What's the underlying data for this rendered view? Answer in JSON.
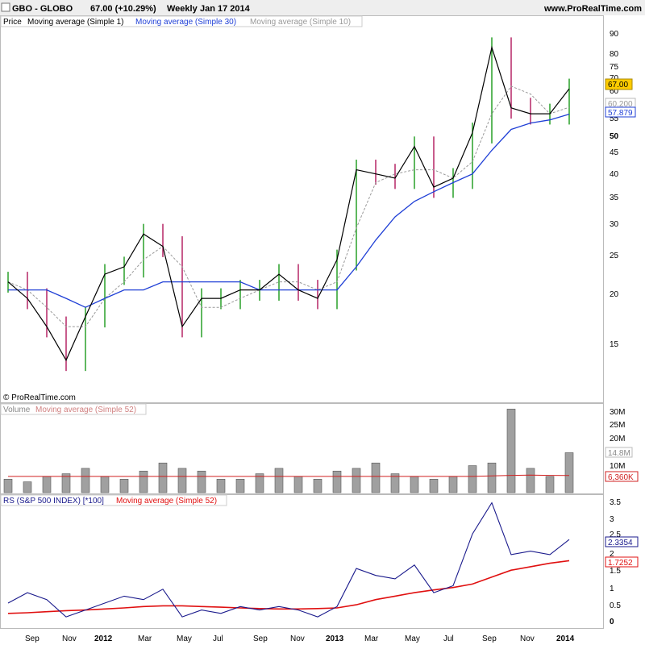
{
  "header": {
    "symbol": "GBO - GLOBO",
    "quote": "67.00 (+10.29%)",
    "period": "Weekly",
    "date": "Jan 17 2014",
    "site": "www.ProRealTime.com"
  },
  "copyright": "© ProRealTime.com",
  "colors": {
    "up": "#1a9a1a",
    "down": "#b0165a",
    "ma1": "#000000",
    "ma30": "#1f3fd6",
    "ma10": "#999999",
    "volume_bar": "#a0a0a0",
    "vol_ma": "#d02020",
    "rs_line": "#1a1a8c",
    "rs_ma": "#e01010",
    "price_badge": "#ffcc00"
  },
  "price_panel": {
    "legend": [
      "Price",
      "Moving average (Simple 1)",
      "Moving average (Simple 30)",
      "Moving average (Simple 10)"
    ],
    "y_ticks": [
      "90",
      "80",
      "75",
      "70",
      "60",
      "55",
      "50",
      "45",
      "40",
      "35",
      "30",
      "25",
      "20",
      "15"
    ],
    "badges": {
      "last": "67.00",
      "ma10": "60.200",
      "ma30": "57.879"
    }
  },
  "volume_panel": {
    "legend": [
      "Volume",
      "Moving average (Simple 52)"
    ],
    "y_ticks": [
      "30M",
      "25M",
      "20M",
      "10M"
    ],
    "badges": {
      "last": "14.8M",
      "ma": "6,360K"
    }
  },
  "rs_panel": {
    "legend": [
      "RS (S&P 500 INDEX) [*100]",
      "Moving average (Simple 52)"
    ],
    "y_ticks": [
      "3.5",
      "3",
      "2.5",
      "2",
      "1.5",
      "1",
      "0.5",
      "0"
    ],
    "badges": {
      "last": "2.3354",
      "ma": "1.7252"
    }
  },
  "x_axis": {
    "labels": [
      "Sep",
      "Nov",
      "2012",
      "Mar",
      "May",
      "Jul",
      "Sep",
      "Nov",
      "2013",
      "Mar",
      "May",
      "Jul",
      "Sep",
      "Nov",
      "2014"
    ],
    "bold": [
      "2012",
      "2013",
      "2014"
    ]
  },
  "chart_data": [
    {
      "type": "line",
      "title": "GBO - GLOBO",
      "scale": "log",
      "ylim": [
        12,
        95
      ],
      "x": [
        "2011-08",
        "2011-09",
        "2011-10",
        "2011-11",
        "2011-12",
        "2012-01",
        "2012-02",
        "2012-03",
        "2012-04",
        "2012-05",
        "2012-06",
        "2012-07",
        "2012-08",
        "2012-09",
        "2012-10",
        "2012-11",
        "2012-12",
        "2013-01",
        "2013-02",
        "2013-03",
        "2013-04",
        "2013-05",
        "2013-06",
        "2013-07",
        "2013-08",
        "2013-09",
        "2013-10",
        "2013-11",
        "2013-12",
        "2014-01"
      ],
      "series": [
        {
          "name": "Price",
          "values": [
            22,
            20,
            17,
            14,
            18,
            23,
            24,
            29,
            27,
            17,
            20,
            20,
            21,
            21,
            23,
            21,
            20,
            25,
            42,
            41,
            40,
            48,
            38,
            40,
            52,
            85,
            60,
            58,
            58,
            67
          ]
        },
        {
          "name": "Moving average (Simple 30)",
          "values": [
            21,
            21,
            21,
            20,
            19,
            20,
            21,
            21,
            22,
            22,
            22,
            22,
            22,
            21,
            21,
            21,
            21,
            21,
            24,
            28,
            32,
            35,
            37,
            39,
            41,
            47,
            53,
            55,
            56,
            57.879
          ]
        },
        {
          "name": "Moving average (Simple 10)",
          "values": [
            22,
            21,
            19,
            17,
            17,
            20,
            22,
            25,
            27,
            24,
            19,
            19,
            20,
            21,
            22,
            22,
            21,
            22,
            30,
            39,
            41,
            42,
            42,
            40,
            44,
            58,
            68,
            65,
            58,
            60.2
          ]
        }
      ]
    },
    {
      "type": "bar",
      "title": "Volume",
      "ylim": [
        0,
        32
      ],
      "categories": [
        "2011-08",
        "2011-09",
        "2011-10",
        "2011-11",
        "2011-12",
        "2012-01",
        "2012-02",
        "2012-03",
        "2012-04",
        "2012-05",
        "2012-06",
        "2012-07",
        "2012-08",
        "2012-09",
        "2012-10",
        "2012-11",
        "2012-12",
        "2013-01",
        "2013-02",
        "2013-03",
        "2013-04",
        "2013-05",
        "2013-06",
        "2013-07",
        "2013-08",
        "2013-09",
        "2013-10",
        "2013-11",
        "2013-12",
        "2014-01"
      ],
      "values": [
        5,
        4,
        6,
        7,
        9,
        6,
        5,
        8,
        11,
        9,
        8,
        5,
        5,
        7,
        9,
        6,
        5,
        8,
        9,
        11,
        7,
        6,
        5,
        6,
        10,
        11,
        31,
        9,
        6,
        14.8
      ],
      "series": [
        {
          "name": "Moving average (Simple 52)",
          "values": [
            6,
            6,
            6,
            6,
            6,
            6,
            6,
            6,
            6,
            6,
            6,
            6,
            6,
            6,
            6,
            6,
            6,
            6,
            6,
            6,
            6,
            6,
            6,
            6,
            6,
            6.2,
            6.4,
            6.5,
            6.4,
            6.36
          ]
        }
      ]
    },
    {
      "type": "line",
      "title": "RS (S&P 500 INDEX) [*100]",
      "ylim": [
        -0.2,
        3.6
      ],
      "x": [
        "2011-08",
        "2011-09",
        "2011-10",
        "2011-11",
        "2011-12",
        "2012-01",
        "2012-02",
        "2012-03",
        "2012-04",
        "2012-05",
        "2012-06",
        "2012-07",
        "2012-08",
        "2012-09",
        "2012-10",
        "2012-11",
        "2012-12",
        "2013-01",
        "2013-02",
        "2013-03",
        "2013-04",
        "2013-05",
        "2013-06",
        "2013-07",
        "2013-08",
        "2013-09",
        "2013-10",
        "2013-11",
        "2013-12",
        "2014-01"
      ],
      "series": [
        {
          "name": "RS (S&P 500 INDEX) [*100]",
          "values": [
            0.5,
            0.8,
            0.6,
            0.1,
            0.3,
            0.5,
            0.7,
            0.6,
            0.9,
            0.1,
            0.3,
            0.2,
            0.4,
            0.3,
            0.4,
            0.3,
            0.1,
            0.4,
            1.5,
            1.3,
            1.2,
            1.6,
            0.8,
            1.0,
            2.5,
            3.4,
            1.9,
            2.0,
            1.9,
            2.3354
          ]
        },
        {
          "name": "Moving average (Simple 52)",
          "values": [
            0.2,
            0.22,
            0.25,
            0.28,
            0.3,
            0.33,
            0.36,
            0.4,
            0.42,
            0.42,
            0.4,
            0.38,
            0.36,
            0.34,
            0.33,
            0.33,
            0.34,
            0.36,
            0.45,
            0.6,
            0.7,
            0.8,
            0.88,
            0.95,
            1.05,
            1.25,
            1.45,
            1.55,
            1.65,
            1.7252
          ]
        }
      ]
    }
  ]
}
